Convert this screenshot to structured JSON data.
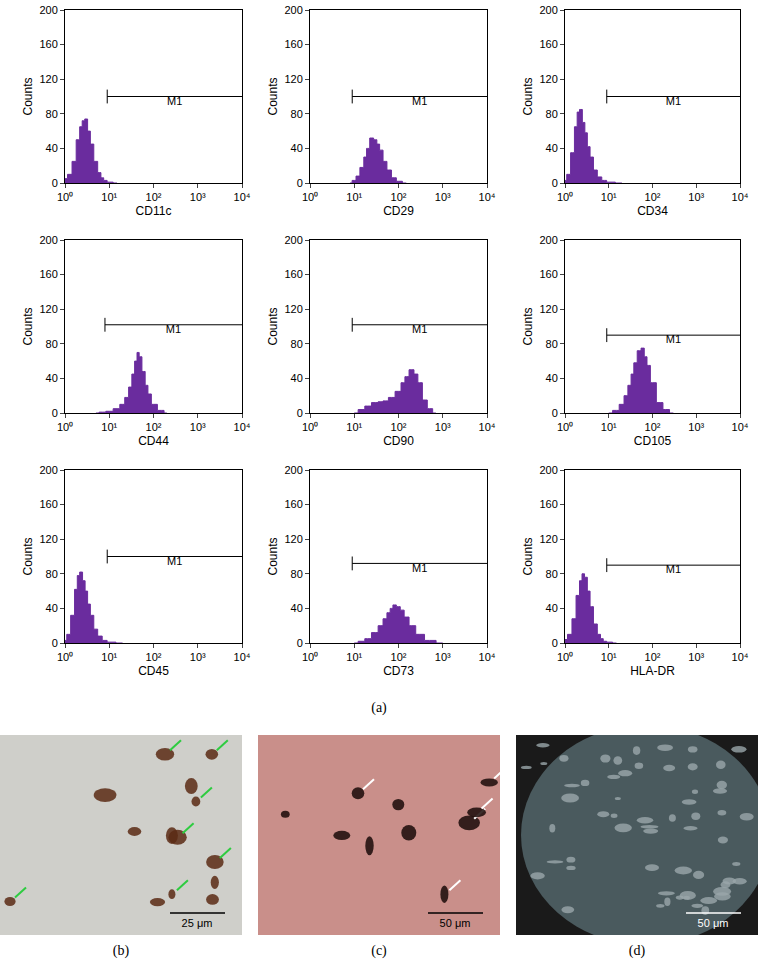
{
  "chart_data": [
    {
      "type": "histogram",
      "x_label": "CD11c",
      "y_label": "Counts",
      "color": "#6a2c9e",
      "log": "x",
      "grid": false,
      "x": [
        1,
        1.3,
        1.6,
        2,
        2.3,
        2.6,
        3,
        3.5,
        4,
        5,
        6,
        7,
        8,
        10,
        15
      ],
      "values": [
        5,
        10,
        25,
        50,
        65,
        72,
        74,
        60,
        45,
        25,
        12,
        6,
        3,
        1,
        0
      ],
      "xlim": [
        1,
        10000
      ],
      "xticks": [
        {
          "value": 1,
          "label": "10⁰"
        },
        {
          "value": 10,
          "label": "10¹"
        },
        {
          "value": 100,
          "label": "10²"
        },
        {
          "value": 1000,
          "label": "10³"
        },
        {
          "value": 10000,
          "label": "10⁴"
        }
      ],
      "ylim": [
        0,
        200
      ],
      "yticks": [
        0,
        40,
        80,
        120,
        160,
        200
      ],
      "annotations": [
        {
          "text": "M1",
          "x_range": [
            9,
            10000
          ],
          "y": 100
        }
      ]
    },
    {
      "type": "histogram",
      "x_label": "CD29",
      "y_label": "Counts",
      "color": "#6a2c9e",
      "log": "x",
      "grid": false,
      "x": [
        8,
        10,
        12,
        15,
        18,
        20,
        25,
        30,
        35,
        40,
        50,
        60,
        80,
        100,
        150
      ],
      "values": [
        0,
        3,
        8,
        18,
        30,
        40,
        52,
        50,
        45,
        38,
        25,
        15,
        6,
        2,
        0
      ],
      "xlim": [
        1,
        10000
      ],
      "xticks": [
        {
          "value": 1,
          "label": "10⁰"
        },
        {
          "value": 10,
          "label": "10¹"
        },
        {
          "value": 100,
          "label": "10²"
        },
        {
          "value": 1000,
          "label": "10³"
        },
        {
          "value": 10000,
          "label": "10⁴"
        }
      ],
      "ylim": [
        0,
        200
      ],
      "yticks": [
        0,
        40,
        80,
        120,
        160,
        200
      ],
      "annotations": [
        {
          "text": "M1",
          "x_range": [
            9,
            10000
          ],
          "y": 100
        }
      ]
    },
    {
      "type": "histogram",
      "x_label": "CD34",
      "y_label": "Counts",
      "color": "#6a2c9e",
      "log": "x",
      "grid": false,
      "x": [
        1,
        1.2,
        1.5,
        1.8,
        2,
        2.3,
        2.7,
        3,
        3.5,
        4,
        5,
        6,
        8,
        10,
        20
      ],
      "values": [
        3,
        10,
        35,
        65,
        82,
        85,
        70,
        58,
        42,
        30,
        15,
        7,
        3,
        1,
        0
      ],
      "xlim": [
        1,
        10000
      ],
      "xticks": [
        {
          "value": 1,
          "label": "10⁰"
        },
        {
          "value": 10,
          "label": "10¹"
        },
        {
          "value": 100,
          "label": "10²"
        },
        {
          "value": 1000,
          "label": "10³"
        },
        {
          "value": 10000,
          "label": "10⁴"
        }
      ],
      "ylim": [
        0,
        200
      ],
      "yticks": [
        0,
        40,
        80,
        120,
        160,
        200
      ],
      "annotations": [
        {
          "text": "M1",
          "x_range": [
            9,
            10000
          ],
          "y": 100
        }
      ]
    },
    {
      "type": "histogram",
      "x_label": "CD44",
      "y_label": "Counts",
      "color": "#6a2c9e",
      "log": "x",
      "grid": false,
      "x": [
        5,
        7,
        10,
        15,
        20,
        25,
        30,
        35,
        40,
        45,
        50,
        60,
        70,
        80,
        100,
        150,
        200
      ],
      "values": [
        0,
        1,
        2,
        5,
        10,
        18,
        30,
        45,
        60,
        70,
        65,
        48,
        32,
        22,
        10,
        3,
        0
      ],
      "xlim": [
        1,
        10000
      ],
      "xticks": [
        {
          "value": 1,
          "label": "10⁰"
        },
        {
          "value": 10,
          "label": "10¹"
        },
        {
          "value": 100,
          "label": "10²"
        },
        {
          "value": 1000,
          "label": "10³"
        },
        {
          "value": 10000,
          "label": "10⁴"
        }
      ],
      "ylim": [
        0,
        200
      ],
      "yticks": [
        0,
        40,
        80,
        120,
        160,
        200
      ],
      "annotations": [
        {
          "text": "M1",
          "x_range": [
            8,
            10000
          ],
          "y": 102
        }
      ]
    },
    {
      "type": "histogram",
      "x_label": "CD90",
      "y_label": "Counts",
      "color": "#6a2c9e",
      "log": "x",
      "grid": false,
      "x": [
        10,
        15,
        20,
        30,
        40,
        50,
        70,
        100,
        130,
        150,
        200,
        250,
        300,
        400,
        500,
        700
      ],
      "values": [
        0,
        4,
        8,
        12,
        13,
        14,
        18,
        25,
        35,
        42,
        50,
        45,
        35,
        15,
        5,
        0
      ],
      "xlim": [
        1,
        10000
      ],
      "xticks": [
        {
          "value": 1,
          "label": "10⁰"
        },
        {
          "value": 10,
          "label": "10¹"
        },
        {
          "value": 100,
          "label": "10²"
        },
        {
          "value": 1000,
          "label": "10³"
        },
        {
          "value": 10000,
          "label": "10⁴"
        }
      ],
      "ylim": [
        0,
        200
      ],
      "yticks": [
        0,
        40,
        80,
        120,
        160,
        200
      ],
      "annotations": [
        {
          "text": "M1",
          "x_range": [
            9,
            10000
          ],
          "y": 102
        }
      ]
    },
    {
      "type": "histogram",
      "x_label": "CD105",
      "y_label": "Counts",
      "color": "#6a2c9e",
      "log": "x",
      "grid": false,
      "x": [
        10,
        15,
        20,
        25,
        30,
        35,
        40,
        50,
        60,
        70,
        80,
        100,
        150,
        200,
        300
      ],
      "values": [
        0,
        3,
        10,
        20,
        32,
        45,
        58,
        72,
        75,
        65,
        55,
        35,
        12,
        4,
        0
      ],
      "xlim": [
        1,
        10000
      ],
      "xticks": [
        {
          "value": 1,
          "label": "10⁰"
        },
        {
          "value": 10,
          "label": "10¹"
        },
        {
          "value": 100,
          "label": "10²"
        },
        {
          "value": 1000,
          "label": "10³"
        },
        {
          "value": 10000,
          "label": "10⁴"
        }
      ],
      "ylim": [
        0,
        200
      ],
      "yticks": [
        0,
        40,
        80,
        120,
        160,
        200
      ],
      "annotations": [
        {
          "text": "M1",
          "x_range": [
            9,
            10000
          ],
          "y": 90
        }
      ]
    },
    {
      "type": "histogram",
      "x_label": "CD45",
      "y_label": "Counts",
      "color": "#6a2c9e",
      "log": "x",
      "grid": false,
      "x": [
        1,
        1.2,
        1.5,
        1.8,
        2,
        2.3,
        2.7,
        3,
        3.5,
        4,
        5,
        6,
        8,
        10,
        20
      ],
      "values": [
        3,
        10,
        32,
        62,
        78,
        82,
        72,
        60,
        45,
        32,
        16,
        8,
        3,
        1,
        0
      ],
      "xlim": [
        1,
        10000
      ],
      "xticks": [
        {
          "value": 1,
          "label": "10⁰"
        },
        {
          "value": 10,
          "label": "10¹"
        },
        {
          "value": 100,
          "label": "10²"
        },
        {
          "value": 1000,
          "label": "10³"
        },
        {
          "value": 10000,
          "label": "10⁴"
        }
      ],
      "ylim": [
        0,
        200
      ],
      "yticks": [
        0,
        40,
        80,
        120,
        160,
        200
      ],
      "annotations": [
        {
          "text": "M1",
          "x_range": [
            9,
            10000
          ],
          "y": 100
        }
      ]
    },
    {
      "type": "histogram",
      "x_label": "CD73",
      "y_label": "Counts",
      "color": "#6a2c9e",
      "log": "x",
      "grid": false,
      "x": [
        10,
        15,
        20,
        30,
        40,
        50,
        60,
        70,
        80,
        100,
        120,
        150,
        200,
        300,
        500,
        1000
      ],
      "values": [
        0,
        2,
        5,
        12,
        20,
        28,
        35,
        40,
        44,
        42,
        38,
        30,
        20,
        10,
        3,
        0
      ],
      "xlim": [
        1,
        10000
      ],
      "xticks": [
        {
          "value": 1,
          "label": "10⁰"
        },
        {
          "value": 10,
          "label": "10¹"
        },
        {
          "value": 100,
          "label": "10²"
        },
        {
          "value": 1000,
          "label": "10³"
        },
        {
          "value": 10000,
          "label": "10⁴"
        }
      ],
      "ylim": [
        0,
        200
      ],
      "yticks": [
        0,
        40,
        80,
        120,
        160,
        200
      ],
      "annotations": [
        {
          "text": "M1",
          "x_range": [
            9,
            10000
          ],
          "y": 92
        }
      ]
    },
    {
      "type": "histogram",
      "x_label": "HLA-DR",
      "y_label": "Counts",
      "color": "#6a2c9e",
      "log": "x",
      "grid": false,
      "x": [
        1,
        1.3,
        1.6,
        2,
        2.3,
        2.6,
        3,
        3.5,
        4,
        5,
        6,
        7,
        8,
        10,
        15
      ],
      "values": [
        4,
        10,
        28,
        55,
        72,
        80,
        76,
        60,
        42,
        22,
        10,
        5,
        2,
        1,
        0
      ],
      "xlim": [
        1,
        10000
      ],
      "xticks": [
        {
          "value": 1,
          "label": "10⁰"
        },
        {
          "value": 10,
          "label": "10¹"
        },
        {
          "value": 100,
          "label": "10²"
        },
        {
          "value": 1000,
          "label": "10³"
        },
        {
          "value": 10000,
          "label": "10⁴"
        }
      ],
      "ylim": [
        0,
        200
      ],
      "yticks": [
        0,
        40,
        80,
        120,
        160,
        200
      ],
      "annotations": [
        {
          "text": "M1",
          "x_range": [
            9,
            10000
          ],
          "y": 90
        }
      ]
    }
  ],
  "figure": {
    "chart_label": "(a)",
    "images": [
      {
        "label": "(b)",
        "scale_bar": "25 μm"
      },
      {
        "label": "(c)",
        "scale_bar": "50 μm"
      },
      {
        "label": "(d)",
        "scale_bar": "50 μm"
      }
    ]
  }
}
